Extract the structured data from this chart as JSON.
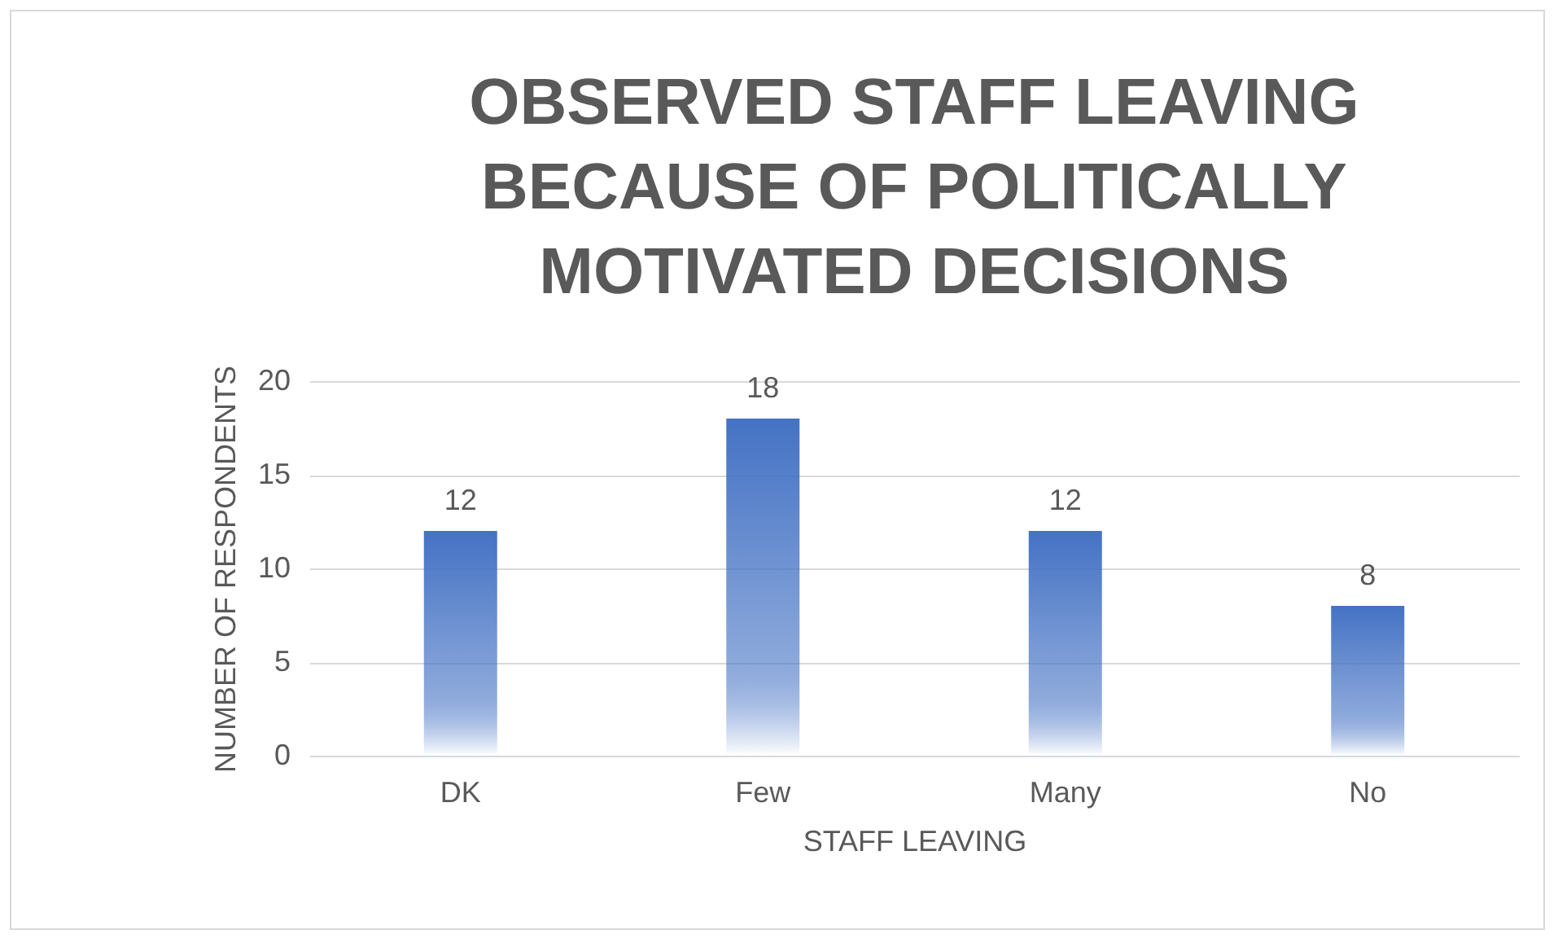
{
  "chart_data": {
    "type": "bar",
    "title": "OBSERVED STAFF LEAVING BECAUSE OF POLITICALLY MOTIVATED DECISIONS",
    "xlabel": "STAFF LEAVING",
    "ylabel": "NUMBER OF RESPONDENTS",
    "categories": [
      "DK",
      "Few",
      "Many",
      "No"
    ],
    "values": [
      12,
      18,
      12,
      8
    ],
    "color": "#4472c4",
    "ylim": [
      0,
      20
    ],
    "yticks": [
      0,
      5,
      10,
      15,
      20
    ],
    "grid": "y",
    "data_labels": true
  }
}
